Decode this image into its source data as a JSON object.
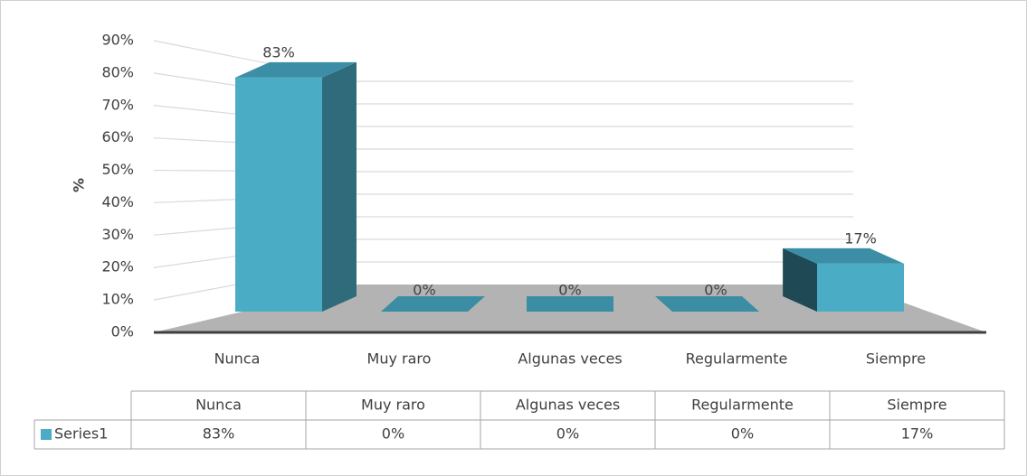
{
  "chart_data": {
    "type": "bar3d",
    "ylabel": "%",
    "categories": [
      "Nunca",
      "Muy raro",
      "Algunas veces",
      "Regularmente",
      "Siempre"
    ],
    "series": [
      {
        "name": "Series1",
        "color": "#4bacc6",
        "values": [
          83,
          0,
          0,
          0,
          17
        ],
        "value_labels": [
          "83%",
          "0%",
          "0%",
          "0%",
          "17%"
        ]
      }
    ],
    "ylim": [
      0,
      90
    ],
    "yticks": [
      {
        "value": 0,
        "label": "0%"
      },
      {
        "value": 10,
        "label": "10%"
      },
      {
        "value": 20,
        "label": "20%"
      },
      {
        "value": 30,
        "label": "30%"
      },
      {
        "value": 40,
        "label": "40%"
      },
      {
        "value": 50,
        "label": "50%"
      },
      {
        "value": 60,
        "label": "60%"
      },
      {
        "value": 70,
        "label": "70%"
      },
      {
        "value": 80,
        "label": "80%"
      },
      {
        "value": 90,
        "label": "90%"
      }
    ],
    "grid": true,
    "data_table": true
  }
}
